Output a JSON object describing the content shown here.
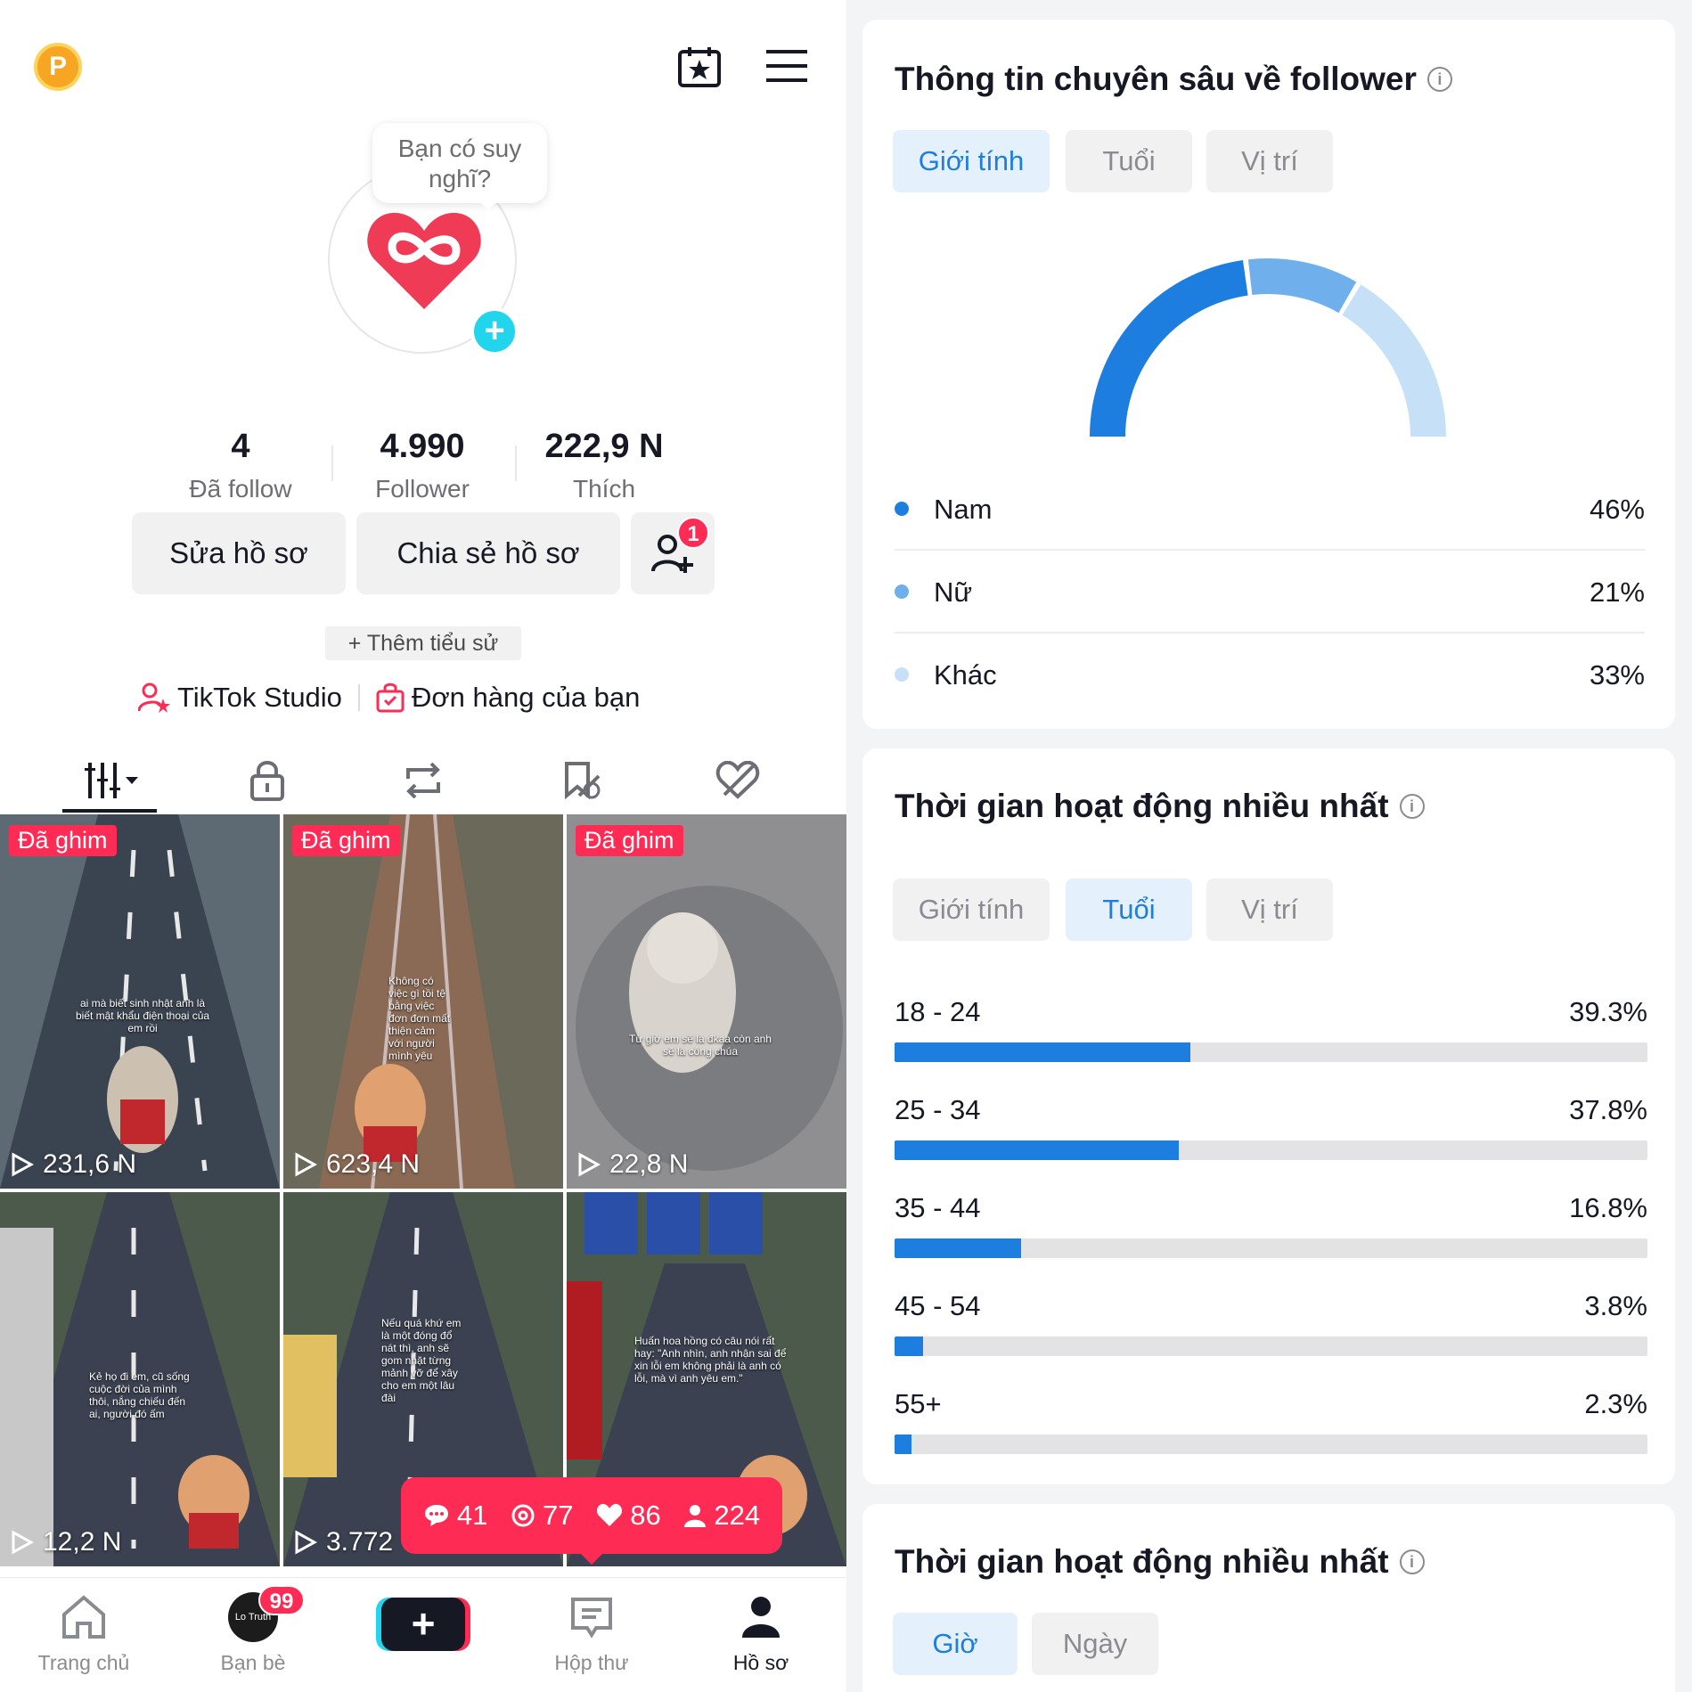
{
  "profile": {
    "coin_letter": "P",
    "bubble_text": "Bạn có suy nghĩ?",
    "stats": [
      {
        "value": "4",
        "label": "Đã follow"
      },
      {
        "value": "4.990",
        "label": "Follower"
      },
      {
        "value": "222,9 N",
        "label": "Thích"
      }
    ],
    "edit_label": "Sửa hồ sơ",
    "share_label": "Chia sẻ hồ sơ",
    "add_friend_badge": "1",
    "add_bio_label": "+ Thêm tiểu sử",
    "studio_label": "TikTok Studio",
    "orders_label": "Đơn hàng của bạn"
  },
  "tabs": [
    {
      "icon": "videos-grid-icon"
    },
    {
      "icon": "lock-icon"
    },
    {
      "icon": "repost-icon"
    },
    {
      "icon": "favorites-icon"
    },
    {
      "icon": "liked-hidden-icon"
    }
  ],
  "videos": [
    {
      "pinned": "Đã ghim",
      "views": "231,6 N",
      "caption": "ai mà biết sinh nhật anh là biết mật khẩu điện thoại của em rồi"
    },
    {
      "pinned": "Đã ghim",
      "views": "623,4 N",
      "caption": "Không có việc gì tồi tệ bằng việc đơn đơn mất thiện cảm với người mình yêu"
    },
    {
      "pinned": "Đã ghim",
      "views": "22,8 N",
      "caption": "Từ giờ em sẽ là đkaa còn anh sẽ là công chúa"
    },
    {
      "pinned": "",
      "views": "12,2 N",
      "caption": "Kẻ họ đi em, cũ sống cuộc đời của mình thôi, nắng chiếu đến ai, người đó ấm"
    },
    {
      "pinned": "",
      "views": "3.772",
      "caption": "Nếu quá khứ em là một đóng đổ nát thì, anh sẽ gom nhặt từng mảnh vỡ để xây cho em một lâu đài"
    },
    {
      "pinned": "",
      "views": "",
      "caption": "Huấn hoa hồng có câu nói rất hay: \"Anh nhìn, anh nhận sai để xin lỗi em không phải là anh có lỗi, mà vì anh yêu em.\""
    }
  ],
  "notifications": {
    "comments": "41",
    "mentions": "77",
    "likes": "86",
    "followers": "224"
  },
  "bottom_nav": {
    "home": "Trang chủ",
    "friends": "Bạn bè",
    "friends_badge": "99",
    "friends_avatar_text": "Lo Truth",
    "inbox": "Hộp thư",
    "profile": "Hồ sơ"
  },
  "insights": {
    "title": "Thông tin chuyên sâu về follower",
    "chips": [
      "Giới tính",
      "Tuổi",
      "Vị trí"
    ],
    "active_chip": "Giới tính",
    "gender": [
      {
        "name": "Nam",
        "percent": "46%",
        "value": 46,
        "color": "#1d7ee0"
      },
      {
        "name": "Nữ",
        "percent": "21%",
        "value": 21,
        "color": "#6fb0ec"
      },
      {
        "name": "Khác",
        "percent": "33%",
        "value": 33,
        "color": "#c5e0f7"
      }
    ]
  },
  "activity": {
    "title": "Thời gian hoạt động nhiều nhất",
    "chips": [
      "Giới tính",
      "Tuổi",
      "Vị trí"
    ],
    "active_chip": "Tuổi",
    "ages": [
      {
        "range": "18 - 24",
        "percent": "39.3%",
        "value": 39.3
      },
      {
        "range": "25 - 34",
        "percent": "37.8%",
        "value": 37.8
      },
      {
        "range": "35 - 44",
        "percent": "16.8%",
        "value": 16.8
      },
      {
        "range": "45 - 54",
        "percent": "3.8%",
        "value": 3.8
      },
      {
        "range": "55+",
        "percent": "2.3%",
        "value": 2.3
      }
    ]
  },
  "activity2": {
    "title": "Thời gian hoạt động nhiều nhất",
    "chips": [
      "Giờ",
      "Ngày"
    ],
    "active_chip": "Giờ"
  }
}
